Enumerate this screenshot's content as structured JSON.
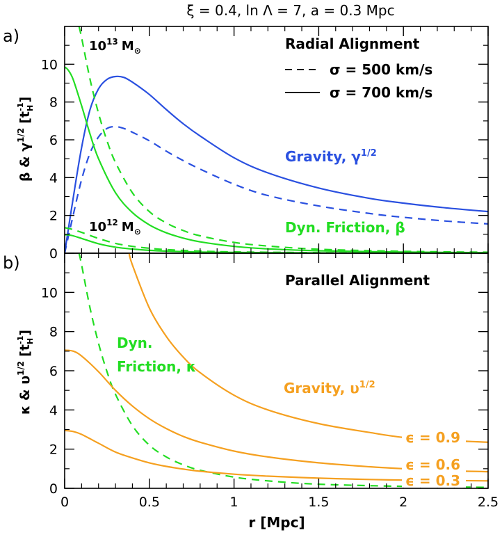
{
  "colors": {
    "blue": "#2a50e0",
    "green": "#22dd22",
    "orange": "#f5a020",
    "black": "#000000"
  },
  "title": "ξ = 0.4, ln Λ = 7, a = 0.3 Mpc",
  "panel_a": {
    "label": "a)",
    "ylabel": "β & γ^1/2 [t_H^-1]",
    "ylabel_main": "β & γ",
    "ylabel_sup": "1/2",
    "ylabel_unit": "[t",
    "ylabel_unit_sub": "H",
    "ylabel_unit_sup": "-1",
    "ylabel_close": "]",
    "legend_title": "Radial Alignment",
    "legend_dashed": "σ = 500 km/s",
    "legend_solid": "σ = 700 km/s",
    "mass_13": "10",
    "mass_13_exp": "13",
    "mass_12": "10",
    "mass_12_exp": "12",
    "mass_unit": "M",
    "mass_sun": "⊙",
    "gravity_label": "Gravity, γ",
    "gravity_sup": "1/2",
    "friction_label": "Dyn. Friction, β"
  },
  "panel_b": {
    "label": "b)",
    "ylabel": "κ & υ^1/2 [t_H^-1]",
    "ylabel_main": "κ & υ",
    "ylabel_sup": "1/2",
    "ylabel_unit": "[t",
    "ylabel_unit_sub": "H",
    "ylabel_unit_sup": "-1",
    "ylabel_close": "]",
    "legend_title": "Parallel Alignment",
    "friction_label_1": "Dyn.",
    "friction_label_2": "Friction, κ",
    "gravity_label": "Gravity, υ",
    "gravity_sup": "1/2",
    "eps_09": "ϵ = 0.9",
    "eps_06": "ϵ = 0.6",
    "eps_03": "ϵ = 0.3"
  },
  "xlabel": "r [Mpc]",
  "chart_data": [
    {
      "type": "line",
      "panel": "a",
      "title": "ξ = 0.4, ln Λ = 7, a = 0.3 Mpc",
      "xlabel": "r [Mpc]",
      "ylabel": "β & γ^1/2 [t_H^-1]",
      "xlim": [
        0,
        2.5
      ],
      "ylim": [
        0,
        12
      ],
      "xticks": [
        0,
        0.5,
        1,
        1.5,
        2,
        2.5
      ],
      "yticks": [
        0,
        2,
        4,
        6,
        8,
        10
      ],
      "yticks_minor": [
        1,
        3,
        5,
        7,
        9,
        11
      ],
      "series": [
        {
          "name": "Gravity, γ^1/2 (σ = 700 km/s)",
          "color": "blue",
          "dash": false,
          "x": [
            0,
            0.05,
            0.1,
            0.15,
            0.2,
            0.25,
            0.3,
            0.35,
            0.4,
            0.5,
            0.6,
            0.7,
            0.8,
            1.0,
            1.2,
            1.5,
            1.8,
            2.0,
            2.25,
            2.5
          ],
          "y": [
            0,
            2.9,
            5.6,
            7.6,
            8.7,
            9.2,
            9.35,
            9.3,
            9.05,
            8.4,
            7.6,
            6.85,
            6.2,
            5.05,
            4.25,
            3.45,
            2.9,
            2.65,
            2.4,
            2.2
          ]
        },
        {
          "name": "Gravity, γ^1/2 (σ = 500 km/s)",
          "color": "blue",
          "dash": true,
          "x": [
            0,
            0.05,
            0.1,
            0.15,
            0.2,
            0.25,
            0.3,
            0.35,
            0.4,
            0.5,
            0.6,
            0.7,
            0.8,
            1.0,
            1.2,
            1.5,
            1.8,
            2.0,
            2.25,
            2.5
          ],
          "y": [
            0,
            2.0,
            3.9,
            5.3,
            6.15,
            6.6,
            6.7,
            6.6,
            6.4,
            5.95,
            5.4,
            4.9,
            4.45,
            3.65,
            3.05,
            2.5,
            2.1,
            1.9,
            1.7,
            1.55
          ]
        },
        {
          "name": "Dyn. Friction, β (10^13 M⊙, σ = 700 km/s)",
          "color": "green",
          "dash": false,
          "x": [
            0,
            0.02,
            0.05,
            0.1,
            0.15,
            0.2,
            0.3,
            0.4,
            0.5,
            0.6,
            0.7,
            0.8,
            1.0,
            1.2,
            1.5,
            2.0,
            2.5
          ],
          "y": [
            9.85,
            9.7,
            9.2,
            7.8,
            6.3,
            5.0,
            3.2,
            2.15,
            1.5,
            1.08,
            0.8,
            0.6,
            0.36,
            0.23,
            0.13,
            0.06,
            0.03
          ]
        },
        {
          "name": "Dyn. Friction, β (10^13 M⊙, σ = 500 km/s)",
          "color": "green",
          "dash": true,
          "x": [
            0.085,
            0.1,
            0.15,
            0.2,
            0.25,
            0.3,
            0.4,
            0.5,
            0.6,
            0.7,
            0.8,
            1.0,
            1.2,
            1.5,
            2.0,
            2.5
          ],
          "y": [
            12,
            11.4,
            9.2,
            7.4,
            5.95,
            4.8,
            3.2,
            2.2,
            1.6,
            1.2,
            0.92,
            0.57,
            0.38,
            0.21,
            0.1,
            0.05
          ]
        },
        {
          "name": "Dyn. Friction, β (10^12 M⊙, σ = 700 km/s)",
          "color": "green",
          "dash": false,
          "x": [
            0,
            0.02,
            0.05,
            0.1,
            0.2,
            0.3,
            0.4,
            0.5,
            0.6,
            0.8,
            1.0,
            1.5,
            2.0,
            2.5
          ],
          "y": [
            0.98,
            0.97,
            0.92,
            0.78,
            0.5,
            0.32,
            0.22,
            0.15,
            0.11,
            0.06,
            0.04,
            0.015,
            0.006,
            0.003
          ]
        },
        {
          "name": "Dyn. Friction, β (10^12 M⊙, σ = 500 km/s)",
          "color": "green",
          "dash": true,
          "x": [
            0,
            0.05,
            0.1,
            0.2,
            0.3,
            0.4,
            0.5,
            0.6,
            0.8,
            1.0,
            1.5,
            2.0,
            2.5
          ],
          "y": [
            1.35,
            1.25,
            1.1,
            0.78,
            0.52,
            0.36,
            0.26,
            0.19,
            0.11,
            0.07,
            0.03,
            0.012,
            0.005
          ]
        }
      ]
    },
    {
      "type": "line",
      "panel": "b",
      "xlabel": "r [Mpc]",
      "ylabel": "κ & υ^1/2 [t_H^-1]",
      "xlim": [
        0,
        2.5
      ],
      "ylim": [
        0,
        12
      ],
      "xticks": [
        0,
        0.5,
        1,
        1.5,
        2,
        2.5
      ],
      "yticks": [
        0,
        2,
        4,
        6,
        8,
        10
      ],
      "yticks_minor": [
        1,
        3,
        5,
        7,
        9,
        11
      ],
      "series": [
        {
          "name": "Dyn. Friction, κ",
          "color": "green",
          "dash": true,
          "x": [
            0.085,
            0.1,
            0.15,
            0.2,
            0.25,
            0.3,
            0.4,
            0.5,
            0.6,
            0.7,
            0.8,
            1.0,
            1.2,
            1.5,
            2.0,
            2.5
          ],
          "y": [
            12,
            11.4,
            9.2,
            7.4,
            5.95,
            4.8,
            3.2,
            2.2,
            1.6,
            1.2,
            0.92,
            0.57,
            0.38,
            0.21,
            0.1,
            0.05
          ]
        },
        {
          "name": "ϵ = 0.9",
          "color": "orange",
          "dash": false,
          "x": [
            0.38,
            0.4,
            0.5,
            0.6,
            0.7,
            0.8,
            1.0,
            1.2,
            1.5,
            1.8,
            2.0,
            2.25,
            2.5
          ],
          "y": [
            12,
            11.4,
            9.2,
            7.75,
            6.7,
            5.9,
            4.75,
            4.0,
            3.3,
            2.85,
            2.6,
            2.45,
            2.35
          ]
        },
        {
          "name": "ϵ = 0.6",
          "color": "orange",
          "dash": false,
          "x": [
            0,
            0.05,
            0.1,
            0.2,
            0.3,
            0.4,
            0.5,
            0.6,
            0.7,
            0.8,
            1.0,
            1.2,
            1.5,
            1.8,
            2.0,
            2.25,
            2.5
          ],
          "y": [
            7.05,
            7.0,
            6.75,
            5.95,
            5.0,
            4.2,
            3.55,
            3.05,
            2.65,
            2.35,
            1.9,
            1.6,
            1.3,
            1.1,
            1.0,
            0.9,
            0.85
          ]
        },
        {
          "name": "ϵ = 0.3",
          "color": "orange",
          "dash": false,
          "x": [
            0,
            0.05,
            0.1,
            0.2,
            0.3,
            0.4,
            0.5,
            0.6,
            0.7,
            0.8,
            1.0,
            1.2,
            1.5,
            1.8,
            2.0,
            2.25,
            2.5
          ],
          "y": [
            2.95,
            2.9,
            2.75,
            2.3,
            1.85,
            1.55,
            1.3,
            1.12,
            0.98,
            0.87,
            0.72,
            0.62,
            0.52,
            0.45,
            0.42,
            0.4,
            0.38
          ]
        }
      ]
    }
  ]
}
